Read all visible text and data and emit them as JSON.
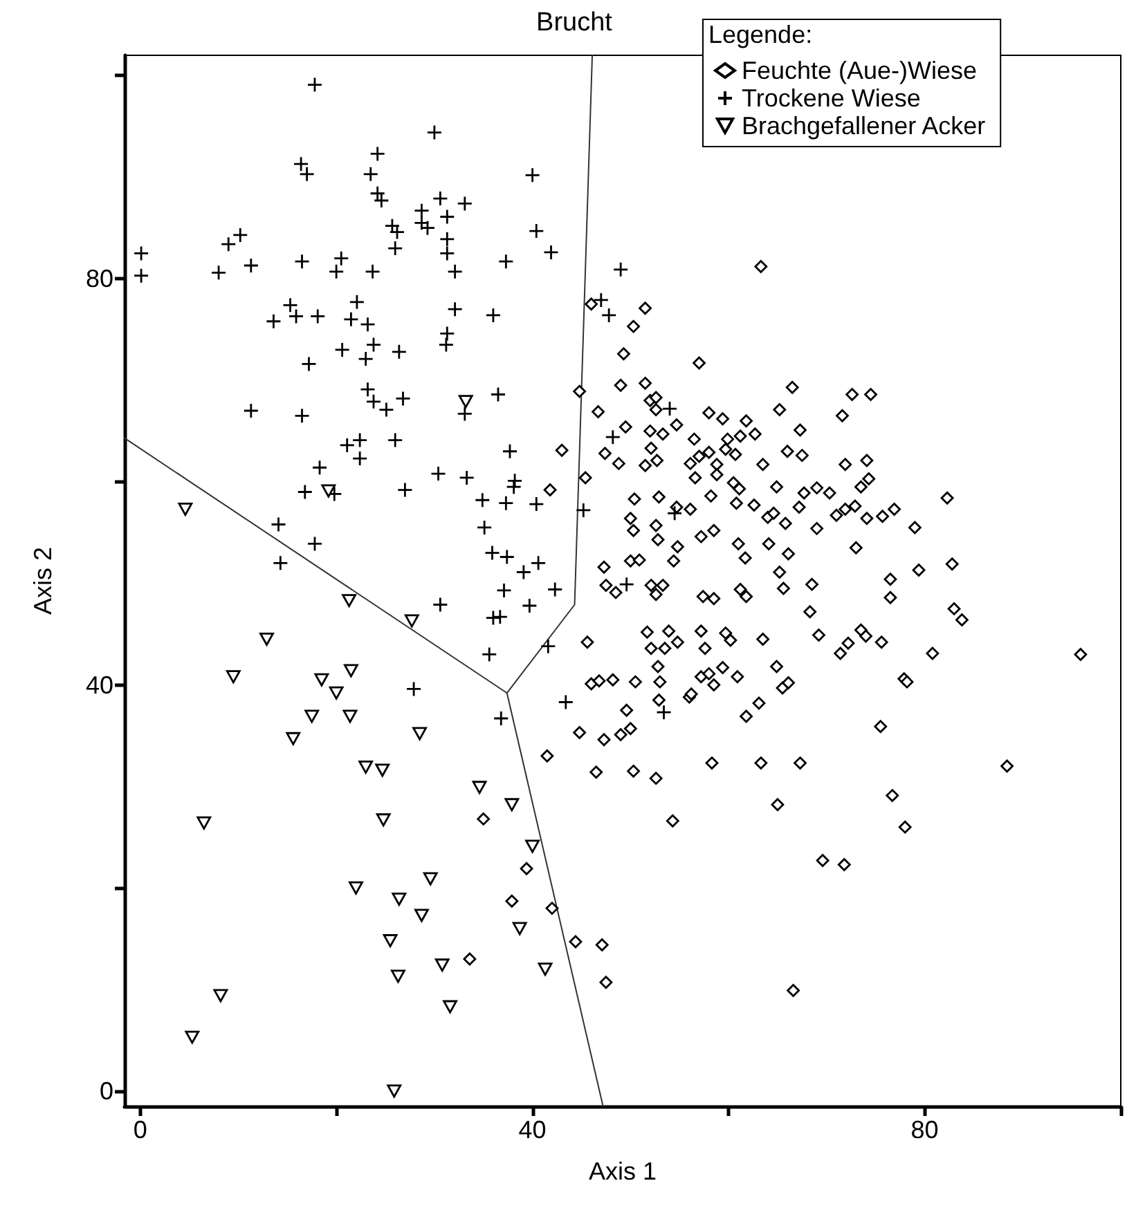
{
  "chart_data": {
    "type": "scatter",
    "title": "Brucht",
    "xlabel": "Axis 1",
    "ylabel": "Axis 2",
    "legend_title": "Legende:",
    "legend": "top right",
    "grid": false,
    "xlim": [
      -1.6,
      100
    ],
    "xticks": [
      0,
      {
        "value": 20,
        "label": null
      },
      40,
      {
        "value": 60,
        "label": null
      },
      80,
      {
        "value": 100,
        "label": null
      }
    ],
    "ylim": [
      -1.5,
      102
    ],
    "yticks": [
      0,
      {
        "value": 20,
        "label": null
      },
      40,
      {
        "value": 60,
        "label": null
      },
      80,
      {
        "value": 100,
        "label": null
      }
    ],
    "series": [
      {
        "name": "Feuchte (Aue-)Wiese",
        "color": "#000000",
        "marker": "diamond",
        "x": [
          41.8,
          63.3,
          46.0,
          51.5,
          50.3,
          49.3,
          57.0,
          44.8,
          49.0,
          51.5,
          66.5,
          46.7,
          52.0,
          52.6,
          52.6,
          65.2,
          72.6,
          74.5,
          71.6,
          49.5,
          52.0,
          53.3,
          54.7,
          58.0,
          59.4,
          61.8,
          62.7,
          67.3,
          47.4,
          48.8,
          52.1,
          52.7,
          51.5,
          56.5,
          59.9,
          61.2,
          58.0,
          57.0,
          59.7,
          60.7,
          56.1,
          58.8,
          63.5,
          66.0,
          67.5,
          71.9,
          74.1,
          45.4,
          56.6,
          58.8,
          60.5,
          61.1,
          64.9,
          67.7,
          69.0,
          70.3,
          74.3,
          73.5,
          82.3,
          50.4,
          52.9,
          54.7,
          56.1,
          58.2,
          60.8,
          62.6,
          67.2,
          71.0,
          71.9,
          72.9,
          74.1,
          75.7,
          76.9,
          79.0,
          50.0,
          50.3,
          52.6,
          52.8,
          57.2,
          58.5,
          64.0,
          64.6,
          65.8,
          69.0,
          73.0,
          61.0,
          64.1,
          54.8,
          43.0,
          47.3,
          50.0,
          50.9,
          54.4,
          66.1,
          61.7,
          65.2,
          65.6,
          68.5,
          68.3,
          76.5,
          76.5,
          79.4,
          82.8,
          83.0,
          83.8,
          47.5,
          48.5,
          52.1,
          53.3,
          52.6,
          57.4,
          58.5,
          61.2,
          61.8,
          45.6,
          51.7,
          52.1,
          53.5,
          53.9,
          54.8,
          57.2,
          57.6,
          59.7,
          60.2,
          63.5,
          69.2,
          71.4,
          72.2,
          73.5,
          74.0,
          75.6,
          80.8,
          95.9,
          46.0,
          46.8,
          48.2,
          50.5,
          52.8,
          53.0,
          57.2,
          58.0,
          59.4,
          58.5,
          60.9,
          64.9,
          65.5,
          66.1,
          77.9,
          78.2,
          56.0,
          56.2,
          49.6,
          52.9,
          63.1,
          61.8,
          75.5,
          44.8,
          47.3,
          49.0,
          50.0,
          46.5,
          50.3,
          52.6,
          58.3,
          63.3,
          67.3,
          88.4,
          76.7,
          65.0,
          35.0,
          39.4,
          37.9,
          33.6,
          41.5,
          54.3,
          42.0,
          44.4,
          47.1,
          47.5,
          78.0,
          69.6,
          71.8,
          66.6
        ],
        "values": [
          59.2,
          81.2,
          77.5,
          77.1,
          75.3,
          72.6,
          71.7,
          68.9,
          69.5,
          69.7,
          69.3,
          66.9,
          68.0,
          68.3,
          67.1,
          67.1,
          68.6,
          68.6,
          66.5,
          65.4,
          65.0,
          64.7,
          65.6,
          66.8,
          66.2,
          66.0,
          64.7,
          65.1,
          62.8,
          61.8,
          63.3,
          62.1,
          61.6,
          64.2,
          64.2,
          64.5,
          62.9,
          62.5,
          63.2,
          62.7,
          61.8,
          61.7,
          61.7,
          63.0,
          62.6,
          61.7,
          62.1,
          60.4,
          60.4,
          60.7,
          59.9,
          59.3,
          59.5,
          58.9,
          59.4,
          58.9,
          60.3,
          59.5,
          58.4,
          58.3,
          58.5,
          57.5,
          57.3,
          58.6,
          57.9,
          57.7,
          57.5,
          56.7,
          57.3,
          57.6,
          56.4,
          56.6,
          57.3,
          55.5,
          56.4,
          55.2,
          55.7,
          54.3,
          54.6,
          55.2,
          56.5,
          56.9,
          55.9,
          55.4,
          53.5,
          53.9,
          53.9,
          53.6,
          63.1,
          51.6,
          52.2,
          52.3,
          52.2,
          52.9,
          52.5,
          51.1,
          49.5,
          49.9,
          47.2,
          50.4,
          48.6,
          51.3,
          51.9,
          47.5,
          46.4,
          49.8,
          49.1,
          49.8,
          49.8,
          48.9,
          48.7,
          48.5,
          49.4,
          48.7,
          44.2,
          45.2,
          43.6,
          43.6,
          45.3,
          44.2,
          45.3,
          43.6,
          45.1,
          44.4,
          44.5,
          44.9,
          43.1,
          44.1,
          45.4,
          44.8,
          44.2,
          43.1,
          43.0,
          40.1,
          40.4,
          40.5,
          40.3,
          41.8,
          40.3,
          40.8,
          41.1,
          41.7,
          40.0,
          40.8,
          41.8,
          39.7,
          40.2,
          40.6,
          40.3,
          38.8,
          39.1,
          37.5,
          38.5,
          38.2,
          36.9,
          35.9,
          35.3,
          34.6,
          35.1,
          35.7,
          31.4,
          31.5,
          30.8,
          32.3,
          32.3,
          32.3,
          32.0,
          29.1,
          28.2,
          26.8,
          21.9,
          18.7,
          13.0,
          33.0,
          26.6,
          18.0,
          14.7,
          14.4,
          10.7,
          26.0,
          22.7,
          22.3,
          9.9
        ]
      },
      {
        "name": "Trockene Wiese",
        "color": "#000000",
        "marker": "cross",
        "x": [
          17.8,
          30.0,
          24.2,
          16.4,
          17.0,
          23.5,
          40.0,
          24.2,
          24.6,
          30.6,
          33.1,
          28.7,
          31.3,
          28.7,
          29.3,
          25.7,
          26.2,
          31.3,
          40.4,
          26.0,
          31.3,
          41.9,
          0.1,
          0.1,
          10.2,
          9.0,
          8.0,
          11.3,
          16.5,
          20.5,
          20.0,
          23.7,
          32.1,
          37.3,
          22.1,
          15.3,
          15.9,
          18.1,
          13.6,
          21.5,
          23.2,
          32.1,
          36.0,
          31.3,
          31.2,
          23.8,
          20.6,
          23.0,
          26.4,
          17.2,
          23.2,
          23.8,
          25.1,
          26.8,
          36.5,
          33.1,
          11.3,
          16.5,
          49.0,
          47.0,
          47.8,
          54.0,
          48.2,
          45.2,
          54.5,
          22.4,
          21.1,
          26.0,
          22.4,
          37.7,
          18.3,
          16.8,
          19.8,
          27.0,
          30.4,
          33.3,
          38.2,
          38.1,
          34.9,
          37.3,
          40.4,
          35.1,
          14.1,
          17.8,
          14.3,
          35.9,
          37.4,
          40.6,
          39.1,
          37.1,
          42.3,
          39.7,
          30.6,
          36.0,
          36.7,
          35.6,
          41.6,
          27.9,
          43.4,
          49.6,
          53.4,
          36.8
        ],
        "values": [
          99.1,
          94.4,
          92.3,
          91.3,
          90.3,
          90.3,
          90.2,
          88.4,
          87.7,
          87.9,
          87.4,
          86.7,
          86.1,
          85.5,
          85.0,
          85.2,
          84.6,
          83.9,
          84.7,
          83.0,
          82.5,
          82.6,
          82.5,
          80.3,
          84.3,
          83.4,
          80.6,
          81.3,
          81.7,
          82.0,
          80.7,
          80.7,
          80.7,
          81.7,
          77.7,
          77.4,
          76.3,
          76.3,
          75.8,
          76.0,
          75.5,
          77.0,
          76.4,
          74.6,
          73.5,
          73.5,
          73.0,
          72.1,
          72.8,
          71.6,
          69.1,
          67.9,
          67.1,
          68.2,
          68.6,
          66.7,
          67.0,
          66.5,
          80.9,
          77.9,
          76.4,
          67.2,
          64.4,
          57.2,
          56.9,
          64.1,
          63.6,
          64.1,
          62.3,
          63.0,
          61.4,
          59.0,
          58.8,
          59.2,
          60.8,
          60.4,
          60.1,
          59.5,
          58.2,
          57.9,
          57.8,
          55.5,
          55.8,
          53.9,
          52.0,
          53.0,
          52.6,
          52.0,
          51.1,
          49.3,
          49.4,
          47.8,
          47.9,
          46.6,
          46.7,
          43.0,
          43.8,
          39.6,
          38.3,
          49.9,
          37.3,
          36.7
        ]
      },
      {
        "name": "Brachgefallener Acker",
        "color": "#000000",
        "marker": "triangle",
        "x": [
          33.2,
          19.2,
          4.6,
          21.3,
          27.7,
          12.9,
          9.5,
          21.5,
          18.5,
          20.0,
          17.5,
          21.4,
          15.6,
          28.5,
          23.0,
          24.7,
          34.6,
          6.5,
          24.8,
          37.9,
          40.0,
          22.0,
          26.4,
          29.6,
          28.7,
          25.5,
          30.8,
          26.3,
          31.6,
          38.7,
          41.3,
          8.2,
          5.3,
          25.9
        ],
        "values": [
          67.9,
          59.1,
          57.3,
          48.3,
          46.3,
          44.5,
          40.8,
          41.4,
          40.5,
          39.2,
          36.9,
          36.9,
          34.7,
          35.2,
          31.9,
          31.6,
          29.9,
          26.4,
          26.7,
          28.2,
          24.1,
          20.0,
          18.9,
          20.9,
          17.3,
          14.8,
          12.4,
          11.3,
          8.3,
          16.0,
          12.0,
          9.4,
          5.3,
          0
        ]
      },
      {
        "type": "line",
        "color": "#333333",
        "marker": "none",
        "line_style": "solid",
        "x": [
          -1.6,
          37.4
        ],
        "values": [
          64.3,
          39.2
        ]
      },
      {
        "type": "line",
        "color": "#333333",
        "marker": "none",
        "line_style": "solid",
        "x": [
          37.4,
          44.3,
          46.1
        ],
        "values": [
          39.2,
          47.9,
          102
        ]
      },
      {
        "type": "line",
        "color": "#333333",
        "marker": "none",
        "line_style": "solid",
        "x": [
          37.4,
          47.2
        ],
        "values": [
          39.2,
          -1.5
        ]
      }
    ]
  }
}
